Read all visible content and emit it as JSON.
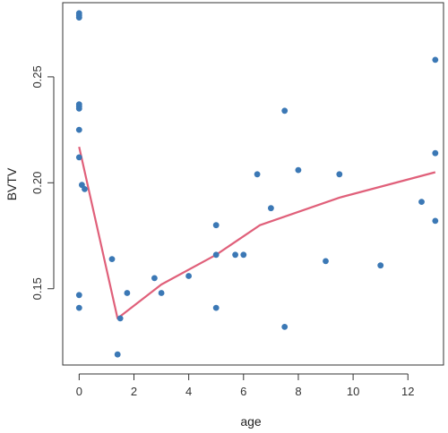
{
  "chart_data": {
    "type": "scatter",
    "xlabel": "age",
    "ylabel": "BVTV",
    "xlim": [
      -0.6,
      13.3
    ],
    "ylim": [
      0.114,
      0.285
    ],
    "xticks": [
      0,
      2,
      4,
      6,
      8,
      10,
      12
    ],
    "yticks": [
      0.15,
      0.2,
      0.25
    ],
    "ytick_labels": [
      "0.15",
      "0.20",
      "0.25"
    ],
    "grid": false,
    "colors": {
      "points": "#3b78b5",
      "line": "#e0607a",
      "axis": "#333333"
    },
    "points": [
      {
        "x": 0.0,
        "y": 0.28
      },
      {
        "x": 0.0,
        "y": 0.279
      },
      {
        "x": 0.0,
        "y": 0.278
      },
      {
        "x": 0.0,
        "y": 0.237
      },
      {
        "x": 0.0,
        "y": 0.236
      },
      {
        "x": 0.0,
        "y": 0.235
      },
      {
        "x": 0.0,
        "y": 0.225
      },
      {
        "x": 0.0,
        "y": 0.212
      },
      {
        "x": 0.1,
        "y": 0.199
      },
      {
        "x": 0.2,
        "y": 0.197
      },
      {
        "x": 0.0,
        "y": 0.147
      },
      {
        "x": 0.0,
        "y": 0.141
      },
      {
        "x": 1.2,
        "y": 0.164
      },
      {
        "x": 1.5,
        "y": 0.136
      },
      {
        "x": 1.4,
        "y": 0.119
      },
      {
        "x": 1.75,
        "y": 0.148
      },
      {
        "x": 2.75,
        "y": 0.155
      },
      {
        "x": 3.0,
        "y": 0.148
      },
      {
        "x": 4.0,
        "y": 0.156
      },
      {
        "x": 5.0,
        "y": 0.18
      },
      {
        "x": 5.0,
        "y": 0.166
      },
      {
        "x": 5.0,
        "y": 0.141
      },
      {
        "x": 5.7,
        "y": 0.166
      },
      {
        "x": 6.0,
        "y": 0.166
      },
      {
        "x": 6.5,
        "y": 0.204
      },
      {
        "x": 7.0,
        "y": 0.188
      },
      {
        "x": 7.5,
        "y": 0.234
      },
      {
        "x": 7.5,
        "y": 0.132
      },
      {
        "x": 8.0,
        "y": 0.206
      },
      {
        "x": 9.0,
        "y": 0.163
      },
      {
        "x": 9.5,
        "y": 0.204
      },
      {
        "x": 11.0,
        "y": 0.161
      },
      {
        "x": 12.5,
        "y": 0.191
      },
      {
        "x": 13.0,
        "y": 0.258
      },
      {
        "x": 13.0,
        "y": 0.214
      },
      {
        "x": 13.0,
        "y": 0.182
      }
    ],
    "fit_line": [
      {
        "x": 0.0,
        "y": 0.217
      },
      {
        "x": 1.4,
        "y": 0.136
      },
      {
        "x": 3.0,
        "y": 0.152
      },
      {
        "x": 5.0,
        "y": 0.166
      },
      {
        "x": 6.6,
        "y": 0.18
      },
      {
        "x": 9.5,
        "y": 0.193
      },
      {
        "x": 13.0,
        "y": 0.205
      }
    ]
  }
}
